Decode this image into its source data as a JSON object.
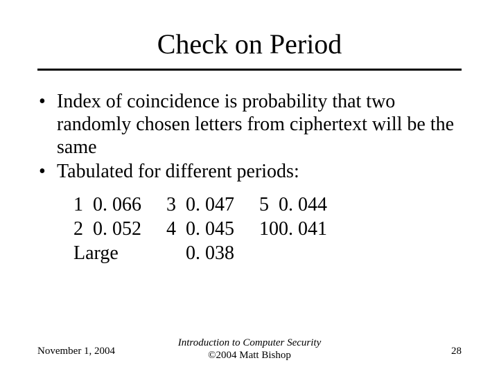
{
  "title": "Check on Period",
  "bullets": [
    "Index of coincidence is probability that two randomly chosen letters from ciphertext will be the same",
    "Tabulated for different periods:"
  ],
  "table": {
    "rows": [
      {
        "a_n": "1",
        "a_v": "0. 066",
        "b_n": "3",
        "b_v": "0. 047",
        "c_n": "5",
        "c_v": "0. 044"
      },
      {
        "a_n": "2",
        "a_v": "0. 052",
        "b_n": "4",
        "b_v": "0. 045",
        "c_n": "10",
        "c_v": "0. 041"
      },
      {
        "a_n": "Large",
        "a_v": "",
        "b_n": "",
        "b_v": "0. 038",
        "c_n": "",
        "c_v": ""
      }
    ]
  },
  "footer": {
    "date": "November 1, 2004",
    "center_line1": "Introduction to Computer Security",
    "center_line2": "©2004 Matt Bishop",
    "page": "28"
  }
}
